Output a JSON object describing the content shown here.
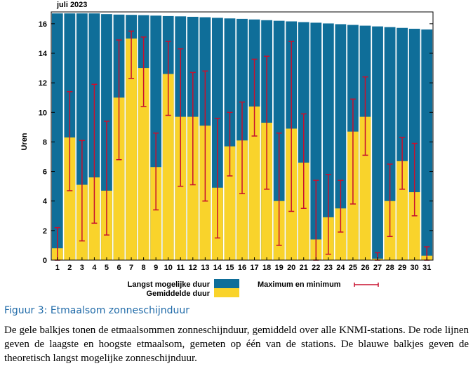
{
  "chart_data": {
    "type": "bar",
    "title": "juli 2023",
    "ylabel": "Uren",
    "xlabel": "",
    "ylim": [
      0,
      16.8
    ],
    "yticks": [
      "0",
      "2",
      "4",
      "6",
      "8",
      "10",
      "12",
      "14",
      "16"
    ],
    "categories": [
      "1",
      "2",
      "3",
      "4",
      "5",
      "6",
      "7",
      "8",
      "9",
      "10",
      "11",
      "12",
      "13",
      "14",
      "15",
      "16",
      "17",
      "18",
      "19",
      "20",
      "21",
      "22",
      "23",
      "24",
      "25",
      "26",
      "27",
      "28",
      "29",
      "30",
      "31"
    ],
    "series": [
      {
        "name": "Langst mogelijke duur",
        "color": "#0f6e99",
        "values": [
          16.7,
          16.7,
          16.7,
          16.7,
          16.65,
          16.62,
          16.6,
          16.58,
          16.55,
          16.52,
          16.5,
          16.47,
          16.44,
          16.4,
          16.36,
          16.33,
          16.29,
          16.24,
          16.2,
          16.16,
          16.11,
          16.07,
          16.02,
          15.97,
          15.92,
          15.87,
          15.82,
          15.77,
          15.72,
          15.66,
          15.61
        ]
      },
      {
        "name": "Gemiddelde duur",
        "color": "#f9d32b",
        "values": [
          0.8,
          8.3,
          5.1,
          5.6,
          4.7,
          11.0,
          15.0,
          13.0,
          6.3,
          12.6,
          9.7,
          9.7,
          9.1,
          4.9,
          7.7,
          8.1,
          10.4,
          9.3,
          4.0,
          8.9,
          6.6,
          1.4,
          2.9,
          3.5,
          8.7,
          9.7,
          0.1,
          4.0,
          6.7,
          4.6,
          0.3
        ]
      }
    ],
    "range_series": {
      "name": "Maximum en minimum",
      "color": "#c8102e",
      "max": [
        2.2,
        11.4,
        8.1,
        11.9,
        9.4,
        14.9,
        15.5,
        15.1,
        8.6,
        14.8,
        14.3,
        12.7,
        12.8,
        9.6,
        10.0,
        10.7,
        13.6,
        13.8,
        8.6,
        14.8,
        9.9,
        5.4,
        5.8,
        5.4,
        10.9,
        12.4,
        0.5,
        6.5,
        8.3,
        7.9,
        0.9
      ],
      "min": [
        0.0,
        4.7,
        1.3,
        2.5,
        1.7,
        6.8,
        12.3,
        10.4,
        3.4,
        9.8,
        5.0,
        5.1,
        4.0,
        1.5,
        5.7,
        4.5,
        8.4,
        4.8,
        1.0,
        3.3,
        3.5,
        0.0,
        0.4,
        1.9,
        3.8,
        7.1,
        0.0,
        1.6,
        4.8,
        3.0,
        0.0
      ]
    },
    "legend": {
      "position": "bottom",
      "series_labels": [
        "Langst mogelijke duur",
        "Gemiddelde duur"
      ],
      "range_label": "Maximum en minimum"
    },
    "grid": false
  },
  "caption": {
    "title": "Figuur 3: Etmaalsom zonneschijnduur",
    "text": "De gele balkjes tonen de etmaalsommen zonneschijnduur, gemiddeld over alle KNMI-stations. De rode lijnen geven de laagste en hoogste etmaalsom, gemeten op één van de stations. De blauwe balkjes geven de theoretisch langst mogelijke zonneschijnduur."
  }
}
